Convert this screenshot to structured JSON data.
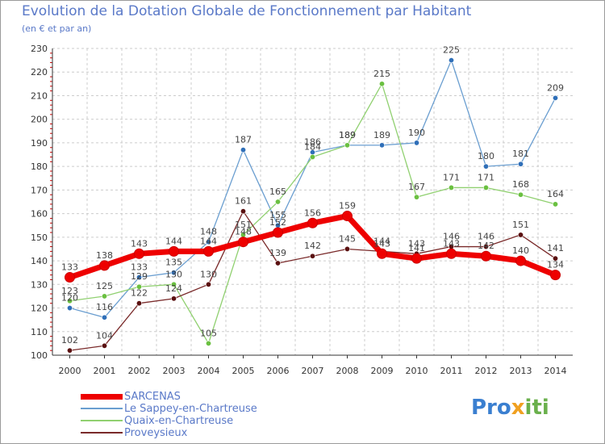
{
  "header": {
    "title": "Evolution de la Dotation Globale de Fonctionnement par Habitant",
    "subtitle": "(en € et par an)"
  },
  "logo": {
    "part1": "Pro",
    "part2": "x",
    "part3": "iti"
  },
  "colors": {
    "grid": "#cccccc",
    "axis": "#333333",
    "minor_tick": "#cc0000",
    "text": "#5a79c8"
  },
  "chart_data": {
    "type": "line",
    "title": "Evolution de la Dotation Globale de Fonctionnement par Habitant",
    "subtitle": "(en € et par an)",
    "xlabel": "",
    "ylabel": "",
    "x": [
      2000,
      2001,
      2002,
      2003,
      2004,
      2005,
      2006,
      2007,
      2008,
      2009,
      2010,
      2011,
      2012,
      2013,
      2014
    ],
    "ylim": [
      100,
      230
    ],
    "yticks": [
      100,
      110,
      120,
      130,
      140,
      150,
      160,
      170,
      180,
      190,
      200,
      210,
      220,
      230
    ],
    "grid": true,
    "legend_position": "bottom-left",
    "series": [
      {
        "name": "SARCENAS",
        "color": "#ee0000",
        "marker": "#ee0000",
        "width": 7,
        "radius": 6,
        "values": [
          133,
          138,
          143,
          144,
          144,
          148,
          152,
          156,
          159,
          143,
          141,
          143,
          142,
          140,
          134
        ]
      },
      {
        "name": "Le Sappey-en-Chartreuse",
        "color": "#6a9ed0",
        "marker": "#2f6fb8",
        "width": 1.3,
        "radius": 3.2,
        "values": [
          120,
          116,
          133,
          135,
          148,
          187,
          155,
          186,
          189,
          189,
          190,
          225,
          180,
          181,
          209
        ]
      },
      {
        "name": "Quaix-en-Chartreuse",
        "color": "#90d070",
        "marker": "#6ac040",
        "width": 1.3,
        "radius": 3.2,
        "values": [
          123,
          125,
          129,
          130,
          105,
          151,
          165,
          184,
          189,
          215,
          167,
          171,
          171,
          168,
          164
        ]
      },
      {
        "name": "Proveysieux",
        "color": "#7a2a2a",
        "marker": "#5a1010",
        "width": 1.3,
        "radius": 3.2,
        "values": [
          102,
          104,
          122,
          124,
          130,
          161,
          139,
          142,
          145,
          144,
          143,
          146,
          146,
          151,
          141
        ]
      }
    ]
  }
}
